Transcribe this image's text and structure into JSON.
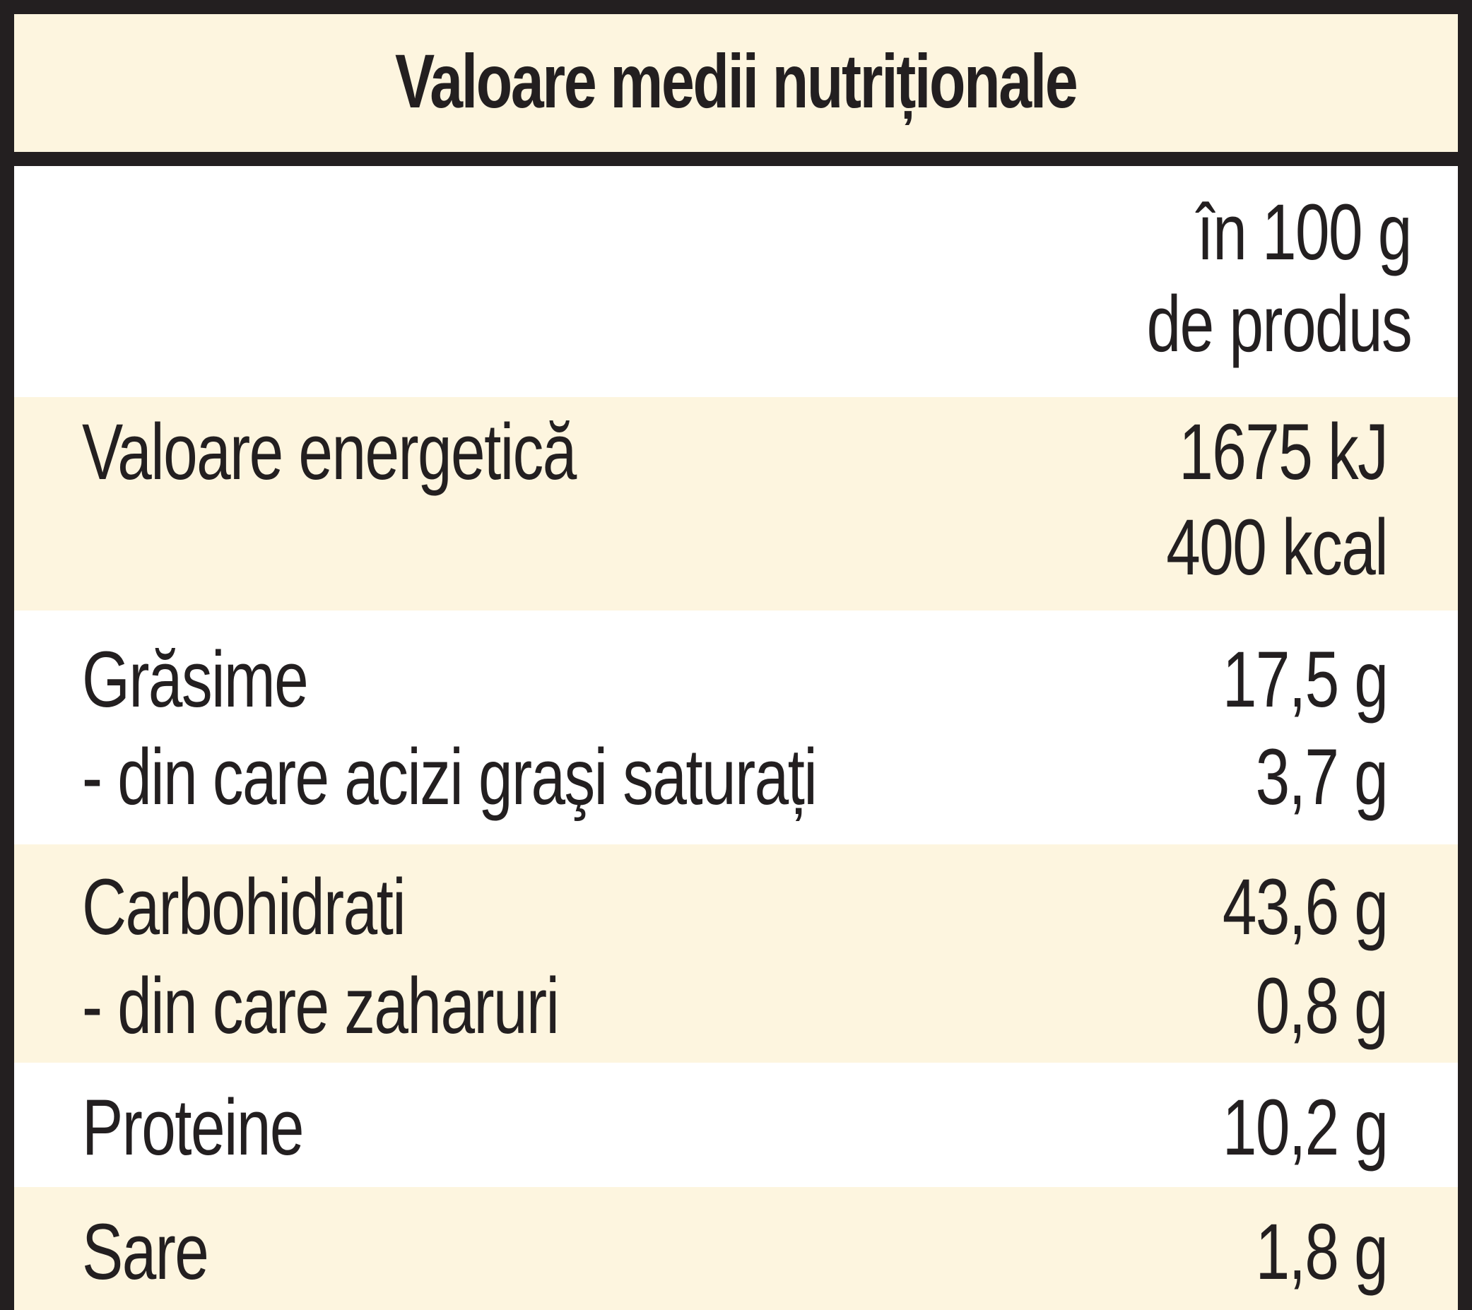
{
  "title": "Valoare medii nutriționale",
  "column_header": {
    "line1": "în 100 g",
    "line2": "de produs"
  },
  "rows": [
    {
      "label_lines": [
        "Valoare energetică"
      ],
      "value_lines": [
        "1675 kJ",
        "400 kcal"
      ]
    },
    {
      "label_lines": [
        "Grăsime",
        "- din care acizi graşi saturați"
      ],
      "value_lines": [
        "17,5 g",
        "3,7 g"
      ]
    },
    {
      "label_lines": [
        "Carbohidrati",
        "- din care zaharuri"
      ],
      "value_lines": [
        "43,6 g",
        "0,8 g"
      ]
    },
    {
      "label_lines": [
        "Proteine"
      ],
      "value_lines": [
        "10,2 g"
      ]
    },
    {
      "label_lines": [
        "Sare"
      ],
      "value_lines": [
        "1,8 g"
      ]
    }
  ],
  "colors": {
    "border": "#231f20",
    "text": "#231f20",
    "shade": "#fdf5df",
    "plain": "#ffffff"
  }
}
